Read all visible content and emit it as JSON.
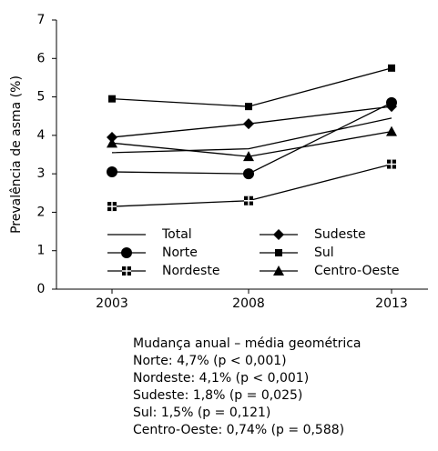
{
  "chart_data": {
    "type": "line",
    "y_label": "Prevalência de asma (%)",
    "categories": [
      "2003",
      "2008",
      "2013"
    ],
    "ylim": [
      0,
      7
    ],
    "yticks": [
      0,
      1,
      2,
      3,
      4,
      5,
      6,
      7
    ],
    "series": [
      {
        "name": "Total",
        "color": "#000000",
        "marker": "none",
        "values": [
          3.55,
          3.65,
          4.45
        ]
      },
      {
        "name": "Norte",
        "color": "#000000",
        "marker": "circle",
        "values": [
          3.05,
          3.0,
          4.85
        ]
      },
      {
        "name": "Nordeste",
        "color": "#000000",
        "marker": "square-plus",
        "values": [
          2.15,
          2.3,
          3.25
        ]
      },
      {
        "name": "Sudeste",
        "color": "#000000",
        "marker": "diamond",
        "values": [
          3.95,
          4.3,
          4.75
        ]
      },
      {
        "name": "Sul",
        "color": "#000000",
        "marker": "square",
        "values": [
          4.95,
          4.75,
          5.75
        ]
      },
      {
        "name": "Centro-Oeste",
        "color": "#000000",
        "marker": "triangle",
        "values": [
          3.8,
          3.45,
          4.1
        ]
      }
    ],
    "annotations": [
      "Mudança anual – média geométrica",
      "Norte: 4,7% (p < 0,001)",
      "Nordeste: 4,1% (p < 0,001)",
      "Sudeste: 1,8% (p = 0,025)",
      "Sul: 1,5% (p = 0,121)",
      "Centro-Oeste: 0,74% (p = 0,588)"
    ]
  }
}
